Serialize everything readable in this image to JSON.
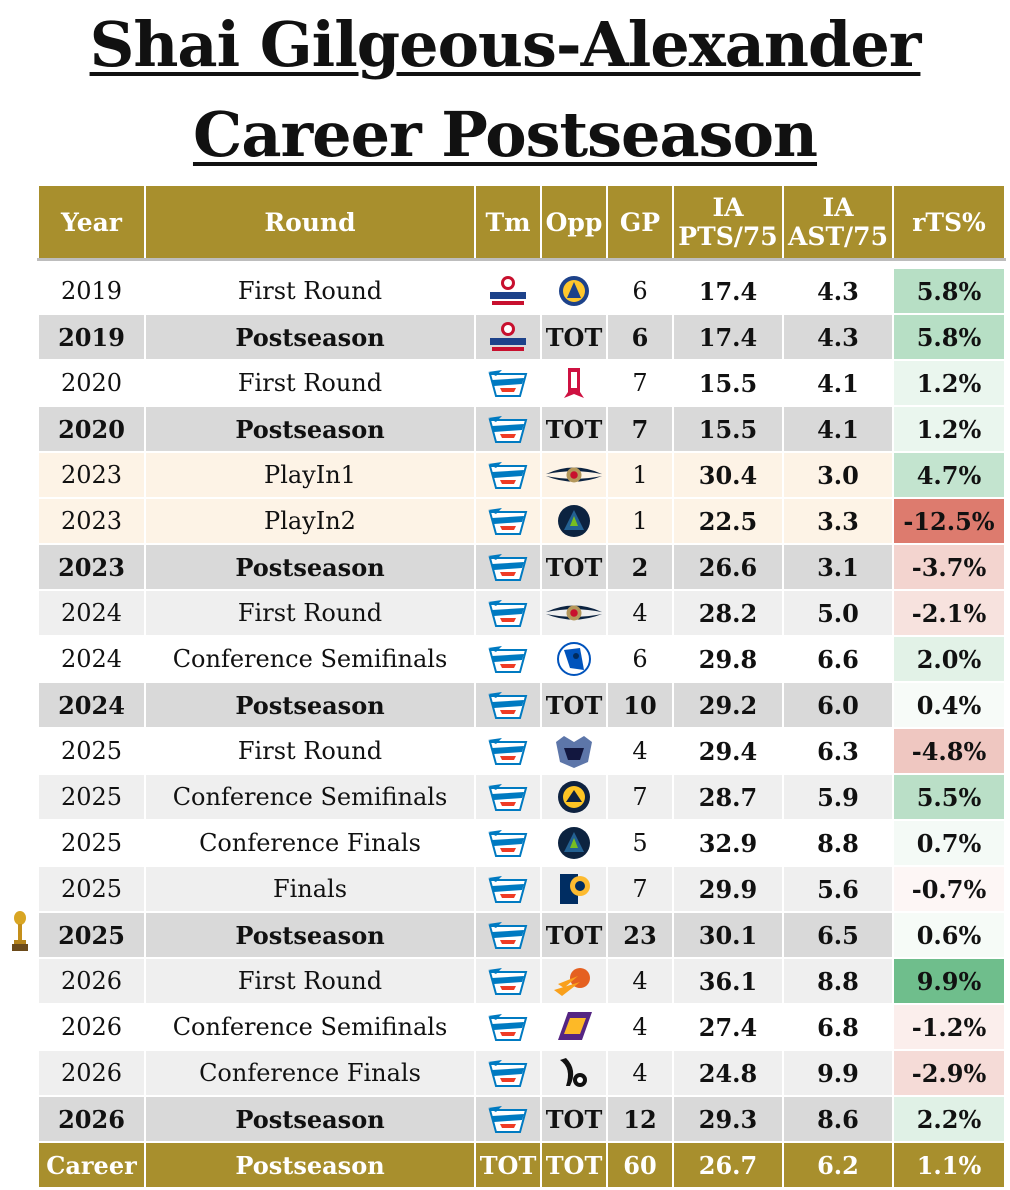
{
  "title": {
    "line1": "Shai Gilgeous-Alexander",
    "line2": "Career Postseason"
  },
  "headers": {
    "year": "Year",
    "round": "Round",
    "tm": "Tm",
    "opp": "Opp",
    "gp": "GP",
    "pts_l1": "IA",
    "pts_l2": "PTS/75",
    "ast_l1": "IA",
    "ast_l2": "AST/75",
    "rts": "rTS%"
  },
  "colors": {
    "header_gold": "#a88f2d",
    "total_row": "#d9d9d9",
    "playin_row": "#fdf3e6"
  },
  "rows": [
    {
      "year": "2019",
      "round": "First Round",
      "tm_icon": "clippers-logo",
      "opp": "",
      "opp_icon": "warriors-logo",
      "gp": "6",
      "pts": "17.4",
      "ast": "4.3",
      "rts": "5.8%",
      "rts_color": "#b7dfc5",
      "style": "light"
    },
    {
      "year": "2019",
      "round": "Postseason",
      "tm_icon": "clippers-logo",
      "opp": "TOT",
      "opp_icon": "",
      "gp": "6",
      "pts": "17.4",
      "ast": "4.3",
      "rts": "5.8%",
      "rts_color": "#b7dfc5",
      "style": "tot"
    },
    {
      "year": "2020",
      "round": "First Round",
      "tm_icon": "thunder-logo",
      "opp": "",
      "opp_icon": "rockets-logo",
      "gp": "7",
      "pts": "15.5",
      "ast": "4.1",
      "rts": "1.2%",
      "rts_color": "#eaf6ee",
      "style": "light"
    },
    {
      "year": "2020",
      "round": "Postseason",
      "tm_icon": "thunder-logo",
      "opp": "TOT",
      "opp_icon": "",
      "gp": "7",
      "pts": "15.5",
      "ast": "4.1",
      "rts": "1.2%",
      "rts_color": "#eaf6ee",
      "style": "tot"
    },
    {
      "year": "2023",
      "round": "PlayIn1",
      "tm_icon": "thunder-logo",
      "opp": "",
      "opp_icon": "pelicans-logo",
      "gp": "1",
      "pts": "30.4",
      "ast": "3.0",
      "rts": "4.7%",
      "rts_color": "#c3e4cf",
      "style": "playin"
    },
    {
      "year": "2023",
      "round": "PlayIn2",
      "tm_icon": "thunder-logo",
      "opp": "",
      "opp_icon": "timberwolves-logo",
      "gp": "1",
      "pts": "22.5",
      "ast": "3.3",
      "rts": "-12.5%",
      "rts_color": "#dd7b6e",
      "style": "playin"
    },
    {
      "year": "2023",
      "round": "Postseason",
      "tm_icon": "thunder-logo",
      "opp": "TOT",
      "opp_icon": "",
      "gp": "2",
      "pts": "26.6",
      "ast": "3.1",
      "rts": "-3.7%",
      "rts_color": "#f3d4cf",
      "style": "tot"
    },
    {
      "year": "2024",
      "round": "First Round",
      "tm_icon": "thunder-logo",
      "opp": "",
      "opp_icon": "pelicans-logo",
      "gp": "4",
      "pts": "28.2",
      "ast": "5.0",
      "rts": "-2.1%",
      "rts_color": "#f7e2de",
      "style": "alt"
    },
    {
      "year": "2024",
      "round": "Conference Semifinals",
      "tm_icon": "thunder-logo",
      "opp": "",
      "opp_icon": "mavericks-logo",
      "gp": "6",
      "pts": "29.8",
      "ast": "6.6",
      "rts": "2.0%",
      "rts_color": "#e2f2e7",
      "style": "light"
    },
    {
      "year": "2024",
      "round": "Postseason",
      "tm_icon": "thunder-logo",
      "opp": "TOT",
      "opp_icon": "",
      "gp": "10",
      "pts": "29.2",
      "ast": "6.0",
      "rts": "0.4%",
      "rts_color": "#f7fbf8",
      "style": "tot"
    },
    {
      "year": "2025",
      "round": "First Round",
      "tm_icon": "thunder-logo",
      "opp": "",
      "opp_icon": "grizzlies-logo",
      "gp": "4",
      "pts": "29.4",
      "ast": "6.3",
      "rts": "-4.8%",
      "rts_color": "#efc7c1",
      "style": "light"
    },
    {
      "year": "2025",
      "round": "Conference Semifinals",
      "tm_icon": "thunder-logo",
      "opp": "",
      "opp_icon": "nuggets-logo",
      "gp": "7",
      "pts": "28.7",
      "ast": "5.9",
      "rts": "5.5%",
      "rts_color": "#badfc7",
      "style": "alt"
    },
    {
      "year": "2025",
      "round": "Conference Finals",
      "tm_icon": "thunder-logo",
      "opp": "",
      "opp_icon": "timberwolves-logo",
      "gp": "5",
      "pts": "32.9",
      "ast": "8.8",
      "rts": "0.7%",
      "rts_color": "#f4faf6",
      "style": "light"
    },
    {
      "year": "2025",
      "round": "Finals",
      "tm_icon": "thunder-logo",
      "opp": "",
      "opp_icon": "pacers-logo",
      "gp": "7",
      "pts": "29.9",
      "ast": "5.6",
      "rts": "-0.7%",
      "rts_color": "#fdf6f5",
      "style": "alt"
    },
    {
      "year": "2025",
      "round": "Postseason",
      "tm_icon": "thunder-logo",
      "opp": "TOT",
      "opp_icon": "",
      "gp": "23",
      "pts": "30.1",
      "ast": "6.5",
      "rts": "0.6%",
      "rts_color": "#f6fbf7",
      "style": "tot"
    },
    {
      "year": "2026",
      "round": "First Round",
      "tm_icon": "thunder-logo",
      "opp": "",
      "opp_icon": "suns-logo",
      "gp": "4",
      "pts": "36.1",
      "ast": "8.8",
      "rts": "9.9%",
      "rts_color": "#6fbe8c",
      "style": "alt"
    },
    {
      "year": "2026",
      "round": "Conference Semifinals",
      "tm_icon": "thunder-logo",
      "opp": "",
      "opp_icon": "lakers-logo",
      "gp": "4",
      "pts": "27.4",
      "ast": "6.8",
      "rts": "-1.2%",
      "rts_color": "#fbeeec",
      "style": "light"
    },
    {
      "year": "2026",
      "round": "Conference Finals",
      "tm_icon": "thunder-logo",
      "opp": "",
      "opp_icon": "spurs-logo",
      "gp": "4",
      "pts": "24.8",
      "ast": "9.9",
      "rts": "-2.9%",
      "rts_color": "#f5dbd7",
      "style": "alt"
    },
    {
      "year": "2026",
      "round": "Postseason",
      "tm_icon": "thunder-logo",
      "opp": "TOT",
      "opp_icon": "",
      "gp": "12",
      "pts": "29.3",
      "ast": "8.6",
      "rts": "2.2%",
      "rts_color": "#e0f1e6",
      "style": "tot"
    }
  ],
  "career": {
    "year": "Career",
    "round": "Postseason",
    "tm": "TOT",
    "opp": "TOT",
    "gp": "60",
    "pts": "26.7",
    "ast": "6.2",
    "rts": "1.1%"
  },
  "trophy_icon": "championship-trophy-icon"
}
